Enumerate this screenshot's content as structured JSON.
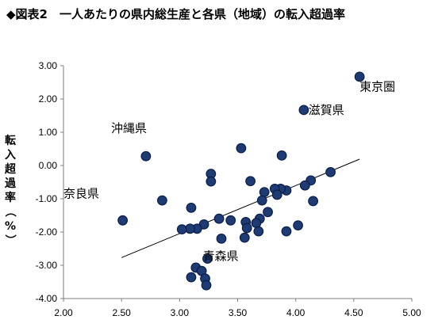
{
  "chart_data": {
    "type": "scatter",
    "title": "◆図表2　一人あたりの県内総生産と各県（地域）の転入超過率",
    "xlabel": "",
    "ylabel": "転入超過率（%）",
    "xlim": [
      2.0,
      5.0
    ],
    "ylim": [
      -4.0,
      3.0
    ],
    "x_ticks": [
      "2.00",
      "2.50",
      "3.00",
      "3.50",
      "4.00",
      "4.50",
      "5.00"
    ],
    "y_ticks": [
      "3.00",
      "2.00",
      "1.00",
      "0.00",
      "-1.00",
      "-2.00",
      "-3.00",
      "-4.00"
    ],
    "grid": false,
    "legend": "none",
    "marker_color": "#1f3b73",
    "marker_edge": "#0a1f4a",
    "trendline": {
      "x": [
        2.5,
        4.55
      ],
      "y": [
        -2.77,
        0.19
      ]
    },
    "points": [
      {
        "x": 4.55,
        "y": 2.67
      },
      {
        "x": 4.07,
        "y": 1.67
      },
      {
        "x": 2.71,
        "y": 0.28
      },
      {
        "x": 2.51,
        "y": -1.65
      },
      {
        "x": 2.85,
        "y": -1.05
      },
      {
        "x": 3.1,
        "y": -1.27
      },
      {
        "x": 3.27,
        "y": -0.25
      },
      {
        "x": 3.27,
        "y": -0.48
      },
      {
        "x": 3.53,
        "y": 0.52
      },
      {
        "x": 3.61,
        "y": -0.47
      },
      {
        "x": 3.88,
        "y": 0.3
      },
      {
        "x": 4.3,
        "y": -0.2
      },
      {
        "x": 4.13,
        "y": -0.45
      },
      {
        "x": 4.08,
        "y": -0.6
      },
      {
        "x": 3.92,
        "y": -0.75
      },
      {
        "x": 3.87,
        "y": -0.7
      },
      {
        "x": 3.82,
        "y": -0.7
      },
      {
        "x": 3.84,
        "y": -0.88
      },
      {
        "x": 3.73,
        "y": -0.8
      },
      {
        "x": 3.71,
        "y": -1.05
      },
      {
        "x": 3.76,
        "y": -1.4
      },
      {
        "x": 4.15,
        "y": -1.07
      },
      {
        "x": 4.02,
        "y": -1.8
      },
      {
        "x": 3.92,
        "y": -1.98
      },
      {
        "x": 3.69,
        "y": -1.6
      },
      {
        "x": 3.66,
        "y": -1.73
      },
      {
        "x": 3.57,
        "y": -1.7
      },
      {
        "x": 3.58,
        "y": -1.88
      },
      {
        "x": 3.68,
        "y": -1.98
      },
      {
        "x": 3.56,
        "y": -2.17
      },
      {
        "x": 3.44,
        "y": -1.65
      },
      {
        "x": 3.34,
        "y": -1.6
      },
      {
        "x": 3.36,
        "y": -2.2
      },
      {
        "x": 3.21,
        "y": -1.77
      },
      {
        "x": 3.15,
        "y": -1.9
      },
      {
        "x": 3.09,
        "y": -1.9
      },
      {
        "x": 3.02,
        "y": -1.92
      },
      {
        "x": 3.24,
        "y": -2.8
      },
      {
        "x": 3.14,
        "y": -3.07
      },
      {
        "x": 3.19,
        "y": -3.17
      },
      {
        "x": 3.1,
        "y": -3.36
      },
      {
        "x": 3.22,
        "y": -3.4
      },
      {
        "x": 3.23,
        "y": -3.6
      }
    ],
    "annotations": [
      {
        "text": "東京圏",
        "x": 4.55,
        "y": 2.25,
        "anchor": "start"
      },
      {
        "text": "滋賀県",
        "x": 4.11,
        "y": 1.55,
        "anchor": "start"
      },
      {
        "text": "沖縄県",
        "x": 2.41,
        "y": 1.0,
        "anchor": "start"
      },
      {
        "text": "奈良県",
        "x": 2.0,
        "y": -0.97,
        "anchor": "start"
      },
      {
        "text": "青森県",
        "x": 3.2,
        "y": -2.85,
        "anchor": "start"
      }
    ]
  }
}
